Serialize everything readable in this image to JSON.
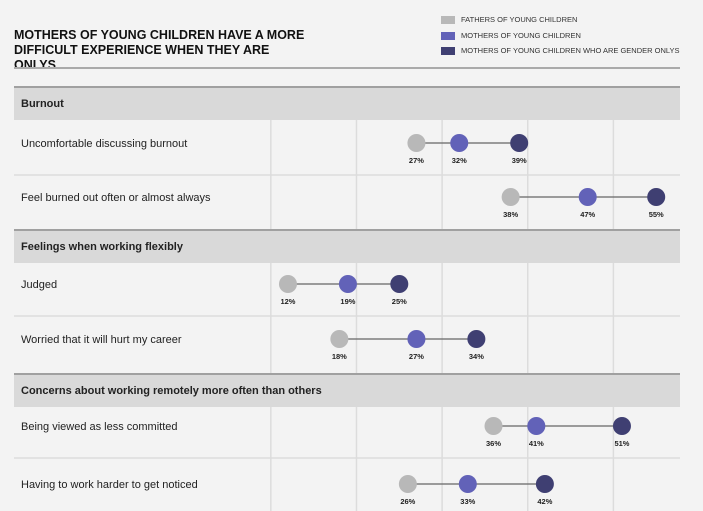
{
  "chart_data": {
    "type": "dot",
    "title": "MOTHERS OF YOUNG CHILDREN HAVE A MORE DIFFICULT EXPERIENCE WHEN THEY ARE ONLYS",
    "series": [
      {
        "name": "FATHERS OF YOUNG CHILDREN",
        "color": "#b8b8b8"
      },
      {
        "name": "MOTHERS OF YOUNG CHILDREN",
        "color": "#6262b8"
      },
      {
        "name": "MOTHERS OF YOUNG CHILDREN WHO ARE GENDER ONLYS",
        "color": "#3f3f72"
      }
    ],
    "unit": "%",
    "xlim": [
      0,
      58
    ],
    "grid": true,
    "legend": "top-right",
    "sections": [
      {
        "title": "Burnout",
        "rows": [
          {
            "label": "Uncomfortable discussing burnout",
            "values": [
              27,
              32,
              39
            ]
          },
          {
            "label": "Feel burned out often or almost always",
            "values": [
              38,
              47,
              55
            ]
          }
        ]
      },
      {
        "title": "Feelings when working flexibly",
        "rows": [
          {
            "label": "Judged",
            "values": [
              12,
              19,
              25
            ]
          },
          {
            "label": "Worried that it will hurt my career",
            "values": [
              18,
              27,
              34
            ]
          }
        ]
      },
      {
        "title": "Concerns about working remotely more often than others",
        "rows": [
          {
            "label": "Being viewed as less committed",
            "values": [
              36,
              41,
              51
            ]
          },
          {
            "label": "Having to work harder to get noticed",
            "values": [
              26,
              33,
              42
            ]
          }
        ]
      }
    ]
  }
}
